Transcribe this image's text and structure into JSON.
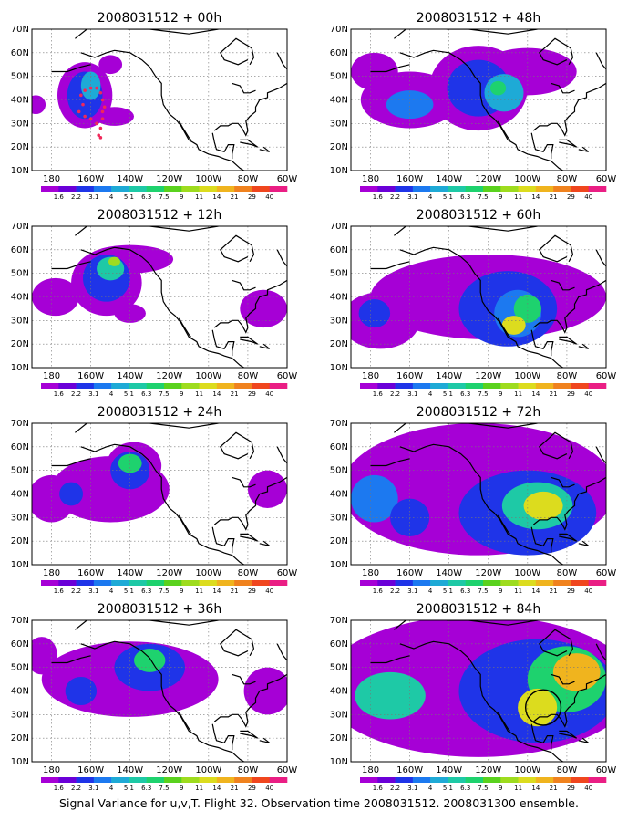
{
  "chart_data": {
    "type": "heatmap",
    "caption": "Signal Variance for u,v,T. Flight 32. Observation time 2008031512. 2008031300 ensemble.",
    "xticks": [
      "180",
      "160W",
      "140W",
      "120W",
      "100W",
      "80W",
      "60W"
    ],
    "yticks": [
      "10N",
      "20N",
      "30N",
      "40N",
      "50N",
      "60N",
      "70N"
    ],
    "xlim": [
      -190,
      -60
    ],
    "ylim": [
      10,
      70
    ],
    "grid": true,
    "colorbar": {
      "labels": [
        "1.6",
        "2.2",
        "3.1",
        "4",
        "5.1",
        "6.3",
        "7.5",
        "9",
        "11",
        "14",
        "21",
        "29",
        "40"
      ],
      "colors": [
        "#a600d6",
        "#6b00d8",
        "#1f34e8",
        "#1c79f0",
        "#1eaad6",
        "#1ec9a6",
        "#1ed26e",
        "#5ad21e",
        "#9edc1e",
        "#dcdc1e",
        "#f0b41e",
        "#f0821e",
        "#f0461e",
        "#ea1e84"
      ]
    },
    "panels": [
      {
        "title": "2008031512 + 00h",
        "blobs": [
          {
            "lon": -163,
            "lat": 42,
            "rx": 14,
            "ry": 14,
            "level": 0
          },
          {
            "lon": -150,
            "lat": 55,
            "rx": 6,
            "ry": 4,
            "level": 0
          },
          {
            "lon": -148,
            "lat": 33,
            "rx": 10,
            "ry": 4,
            "level": 0
          },
          {
            "lon": -163,
            "lat": 42,
            "rx": 9,
            "ry": 10,
            "level": 2
          },
          {
            "lon": -160,
            "lat": 46,
            "rx": 5,
            "ry": 6,
            "level": 4
          },
          {
            "lon": -188,
            "lat": 38,
            "rx": 5,
            "ry": 4,
            "level": 0
          }
        ],
        "obs": [
          [
            -164,
            38
          ],
          [
            -166,
            35
          ],
          [
            -163,
            33
          ],
          [
            -160,
            32
          ],
          [
            -157,
            30
          ],
          [
            -155,
            28
          ],
          [
            -154,
            35
          ],
          [
            -154,
            32
          ],
          [
            -165,
            42
          ],
          [
            -163,
            44
          ],
          [
            -160,
            45
          ],
          [
            -157,
            45
          ],
          [
            -155,
            43
          ],
          [
            -154,
            40
          ],
          [
            -153,
            37
          ],
          [
            -156,
            25
          ],
          [
            -155,
            24
          ]
        ],
        "circle": null
      },
      {
        "title": "2008031512 + 48h",
        "blobs": [
          {
            "lon": -160,
            "lat": 40,
            "rx": 25,
            "ry": 12,
            "level": 0
          },
          {
            "lon": -125,
            "lat": 45,
            "rx": 25,
            "ry": 18,
            "level": 0
          },
          {
            "lon": -100,
            "lat": 52,
            "rx": 25,
            "ry": 10,
            "level": 0
          },
          {
            "lon": -178,
            "lat": 52,
            "rx": 12,
            "ry": 8,
            "level": 0
          },
          {
            "lon": -125,
            "lat": 45,
            "rx": 16,
            "ry": 12,
            "level": 2
          },
          {
            "lon": -160,
            "lat": 38,
            "rx": 12,
            "ry": 6,
            "level": 3
          },
          {
            "lon": -112,
            "lat": 43,
            "rx": 10,
            "ry": 8,
            "level": 4
          },
          {
            "lon": -115,
            "lat": 45,
            "rx": 4,
            "ry": 3,
            "level": 6
          }
        ],
        "obs": [],
        "circle": null
      },
      {
        "title": "2008031512 + 12h",
        "blobs": [
          {
            "lon": -152,
            "lat": 46,
            "rx": 18,
            "ry": 14,
            "level": 0
          },
          {
            "lon": -140,
            "lat": 56,
            "rx": 22,
            "ry": 6,
            "level": 0
          },
          {
            "lon": -178,
            "lat": 40,
            "rx": 12,
            "ry": 8,
            "level": 0
          },
          {
            "lon": -140,
            "lat": 33,
            "rx": 8,
            "ry": 4,
            "level": 0
          },
          {
            "lon": -72,
            "lat": 35,
            "rx": 12,
            "ry": 8,
            "level": 0
          },
          {
            "lon": -152,
            "lat": 48,
            "rx": 12,
            "ry": 10,
            "level": 2
          },
          {
            "lon": -150,
            "lat": 52,
            "rx": 7,
            "ry": 5,
            "level": 5
          },
          {
            "lon": -148,
            "lat": 55,
            "rx": 3,
            "ry": 2,
            "level": 8
          }
        ],
        "obs": [],
        "circle": null
      },
      {
        "title": "2008031512 + 60h",
        "blobs": [
          {
            "lon": -120,
            "lat": 40,
            "rx": 60,
            "ry": 18,
            "level": 0
          },
          {
            "lon": -175,
            "lat": 30,
            "rx": 20,
            "ry": 12,
            "level": 0
          },
          {
            "lon": -110,
            "lat": 35,
            "rx": 25,
            "ry": 16,
            "level": 2
          },
          {
            "lon": -178,
            "lat": 33,
            "rx": 8,
            "ry": 6,
            "level": 2
          },
          {
            "lon": -105,
            "lat": 33,
            "rx": 12,
            "ry": 10,
            "level": 3
          },
          {
            "lon": -100,
            "lat": 35,
            "rx": 7,
            "ry": 6,
            "level": 6
          },
          {
            "lon": -107,
            "lat": 28,
            "rx": 6,
            "ry": 4,
            "level": 9
          }
        ],
        "obs": [],
        "circle": null
      },
      {
        "title": "2008031512 + 24h",
        "blobs": [
          {
            "lon": -150,
            "lat": 42,
            "rx": 30,
            "ry": 14,
            "level": 0
          },
          {
            "lon": -138,
            "lat": 52,
            "rx": 14,
            "ry": 10,
            "level": 0
          },
          {
            "lon": -180,
            "lat": 38,
            "rx": 12,
            "ry": 10,
            "level": 0
          },
          {
            "lon": -70,
            "lat": 42,
            "rx": 10,
            "ry": 8,
            "level": 0
          },
          {
            "lon": -140,
            "lat": 50,
            "rx": 10,
            "ry": 8,
            "level": 2
          },
          {
            "lon": -140,
            "lat": 53,
            "rx": 6,
            "ry": 4,
            "level": 6
          },
          {
            "lon": -170,
            "lat": 40,
            "rx": 6,
            "ry": 5,
            "level": 2
          }
        ],
        "obs": [],
        "circle": null
      },
      {
        "title": "2008031512 + 72h",
        "blobs": [
          {
            "lon": -125,
            "lat": 42,
            "rx": 70,
            "ry": 28,
            "level": 0
          },
          {
            "lon": -100,
            "lat": 32,
            "rx": 35,
            "ry": 18,
            "level": 2
          },
          {
            "lon": -178,
            "lat": 38,
            "rx": 12,
            "ry": 10,
            "level": 3
          },
          {
            "lon": -95,
            "lat": 35,
            "rx": 18,
            "ry": 10,
            "level": 5
          },
          {
            "lon": -92,
            "lat": 35,
            "rx": 10,
            "ry": 6,
            "level": 9
          },
          {
            "lon": -160,
            "lat": 30,
            "rx": 10,
            "ry": 8,
            "level": 2
          }
        ],
        "obs": [],
        "circle": null
      },
      {
        "title": "2008031512 + 36h",
        "blobs": [
          {
            "lon": -140,
            "lat": 45,
            "rx": 45,
            "ry": 16,
            "level": 0
          },
          {
            "lon": -185,
            "lat": 55,
            "rx": 8,
            "ry": 8,
            "level": 0
          },
          {
            "lon": -70,
            "lat": 40,
            "rx": 12,
            "ry": 10,
            "level": 0
          },
          {
            "lon": -130,
            "lat": 50,
            "rx": 18,
            "ry": 10,
            "level": 2
          },
          {
            "lon": -130,
            "lat": 53,
            "rx": 8,
            "ry": 5,
            "level": 6
          },
          {
            "lon": -165,
            "lat": 40,
            "rx": 8,
            "ry": 6,
            "level": 2
          }
        ],
        "obs": [],
        "circle": null
      },
      {
        "title": "2008031512 + 84h",
        "blobs": [
          {
            "lon": -125,
            "lat": 42,
            "rx": 80,
            "ry": 30,
            "level": 0
          },
          {
            "lon": -95,
            "lat": 40,
            "rx": 40,
            "ry": 22,
            "level": 2
          },
          {
            "lon": -170,
            "lat": 38,
            "rx": 18,
            "ry": 10,
            "level": 5
          },
          {
            "lon": -80,
            "lat": 45,
            "rx": 20,
            "ry": 14,
            "level": 6
          },
          {
            "lon": -75,
            "lat": 48,
            "rx": 12,
            "ry": 8,
            "level": 10
          },
          {
            "lon": -95,
            "lat": 33,
            "rx": 10,
            "ry": 8,
            "level": 9
          }
        ],
        "obs": [],
        "circle": {
          "lon": -92,
          "lat": 33,
          "r": 9
        }
      }
    ]
  }
}
